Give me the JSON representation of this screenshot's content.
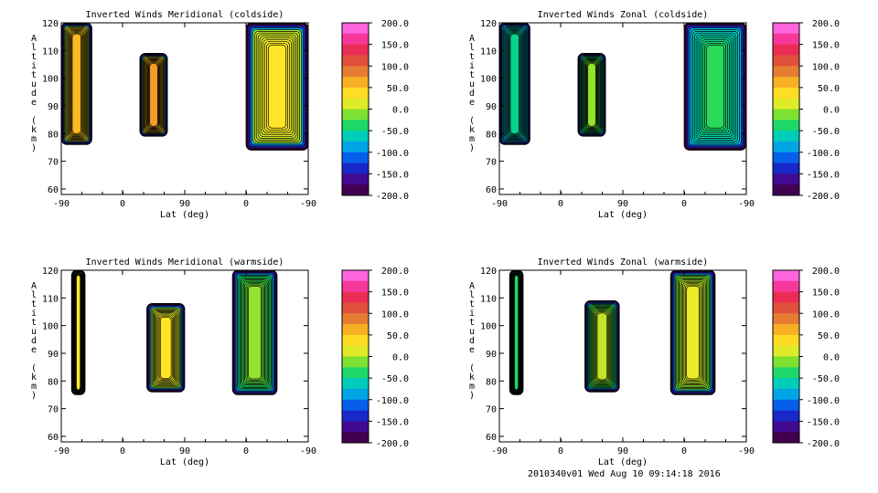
{
  "footer": "2010340v01 Wed Aug 10 09:14:18 2016",
  "chart_data": [
    {
      "type": "heatmap",
      "title": "Inverted Winds Meridional (coldside)",
      "xlabel": "Lat (deg)",
      "ylabel": "Altitude (km)",
      "xticks": [
        "-90",
        "0",
        "90",
        "0",
        "-90"
      ],
      "yticks": [
        "60",
        "70",
        "80",
        "90",
        "100",
        "110",
        "120"
      ],
      "ylim": [
        58,
        120
      ],
      "colorbar": {
        "range": [
          -200,
          200
        ],
        "ticks": [
          "200.0",
          "150.0",
          "100.0",
          "50.0",
          "0.0",
          "-50.0",
          "-100.0",
          "-150.0",
          "-200.0"
        ]
      },
      "regions": [
        {
          "x_range": [
            -90,
            -45
          ],
          "alt_range": [
            76,
            120
          ],
          "mean_value": 45
        },
        {
          "x_range": [
            25,
            65
          ],
          "alt_range": [
            79,
            109
          ],
          "mean_value": 60
        },
        {
          "x_range": [
            0,
            -90
          ],
          "alt_range": [
            74,
            120
          ],
          "mean_value": 20
        }
      ]
    },
    {
      "type": "heatmap",
      "title": "Inverted Winds Zonal (coldside)",
      "xlabel": "Lat (deg)",
      "ylabel": "Altitude (km)",
      "xticks": [
        "-90",
        "0",
        "90",
        "0",
        "-90"
      ],
      "yticks": [
        "60",
        "70",
        "80",
        "90",
        "100",
        "110",
        "120"
      ],
      "ylim": [
        58,
        120
      ],
      "colorbar": {
        "range": [
          -200,
          200
        ],
        "ticks": [
          "200.0",
          "150.0",
          "100.0",
          "50.0",
          "0.0",
          "-50.0",
          "-100.0",
          "-150.0",
          "-200.0"
        ]
      },
      "regions": [
        {
          "x_range": [
            -90,
            -45
          ],
          "alt_range": [
            76,
            120
          ],
          "mean_value": -60
        },
        {
          "x_range": [
            25,
            65
          ],
          "alt_range": [
            79,
            109
          ],
          "mean_value": -20
        },
        {
          "x_range": [
            0,
            -90
          ],
          "alt_range": [
            74,
            120
          ],
          "mean_value": -45
        }
      ]
    },
    {
      "type": "heatmap",
      "title": "Inverted Winds Meridional (warmside)",
      "xlabel": "Lat (deg)",
      "ylabel": "Altitude (km)",
      "xticks": [
        "-90",
        "0",
        "90",
        "0",
        "-90"
      ],
      "yticks": [
        "60",
        "70",
        "80",
        "90",
        "100",
        "110",
        "120"
      ],
      "ylim": [
        58,
        120
      ],
      "colorbar": {
        "range": [
          -200,
          200
        ],
        "ticks": [
          "200.0",
          "150.0",
          "100.0",
          "50.0",
          "0.0",
          "-50.0",
          "-100.0",
          "-150.0",
          "-200.0"
        ]
      },
      "regions": [
        {
          "x_range": [
            -75,
            -55
          ],
          "alt_range": [
            75,
            120
          ],
          "mean_value": 10
        },
        {
          "x_range": [
            35,
            90
          ],
          "alt_range": [
            76,
            108
          ],
          "mean_value": 20
        },
        {
          "x_range": [
            20,
            -45
          ],
          "alt_range": [
            75,
            120
          ],
          "mean_value": -20
        }
      ]
    },
    {
      "type": "heatmap",
      "title": "Inverted Winds Zonal (warmside)",
      "xlabel": "Lat (deg)",
      "ylabel": "Altitude (km)",
      "xticks": [
        "-90",
        "0",
        "90",
        "0",
        "-90"
      ],
      "yticks": [
        "60",
        "70",
        "80",
        "90",
        "100",
        "110",
        "120"
      ],
      "ylim": [
        58,
        120
      ],
      "colorbar": {
        "range": [
          -200,
          200
        ],
        "ticks": [
          "200.0",
          "150.0",
          "100.0",
          "50.0",
          "0.0",
          "-50.0",
          "-100.0",
          "-150.0",
          "-200.0"
        ]
      },
      "regions": [
        {
          "x_range": [
            -75,
            -55
          ],
          "alt_range": [
            75,
            120
          ],
          "mean_value": -50
        },
        {
          "x_range": [
            35,
            85
          ],
          "alt_range": [
            76,
            109
          ],
          "mean_value": -10
        },
        {
          "x_range": [
            20,
            -45
          ],
          "alt_range": [
            75,
            120
          ],
          "mean_value": 5
        }
      ]
    }
  ]
}
